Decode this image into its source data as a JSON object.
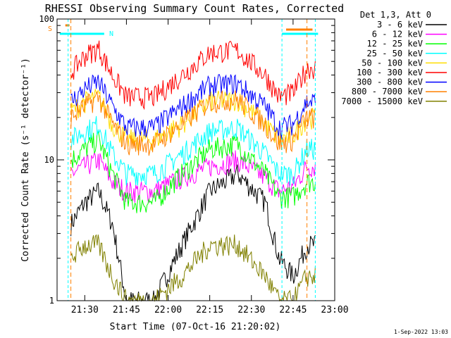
{
  "chart_data": {
    "type": "line",
    "title": "RHESSI Observing Summary Count Rates, Corrected",
    "xlabel": "Start Time (07-Oct-16 21:20:02)",
    "ylabel": "Corrected Count Rate (s⁻¹ detector⁻¹)",
    "yscale": "log",
    "ylim": [
      1,
      100
    ],
    "xlim": [
      "21:20:02",
      "23:00"
    ],
    "x_ticks": [
      "21:30",
      "21:45",
      "22:00",
      "22:15",
      "22:30",
      "22:45",
      "23:00"
    ],
    "y_ticks": [
      "1",
      "10",
      "100"
    ],
    "legend_title": "Det 1,3, Att 0",
    "legend_position": "right",
    "grid": false,
    "flags": [
      {
        "label": "S",
        "color": "#ff8000"
      },
      {
        "label": "N",
        "color": "#00ffff"
      }
    ],
    "series": [
      {
        "name": "3 - 6 keV",
        "color": "#000000",
        "values": [
          3.5,
          5,
          6,
          3.5,
          1,
          1,
          2.5,
          6,
          8,
          5,
          2,
          1.5,
          2.5
        ]
      },
      {
        "name": "6 - 12 keV",
        "color": "#ff00ff",
        "values": [
          8,
          9,
          10,
          7,
          6,
          6,
          7.5,
          9,
          10,
          7.5,
          6,
          6.5,
          9
        ]
      },
      {
        "name": "12 - 25 keV",
        "color": "#00ff00",
        "values": [
          10,
          12,
          14,
          8,
          5,
          5,
          8,
          12,
          13,
          8,
          5.5,
          5.5,
          7
        ]
      },
      {
        "name": "25 - 50 keV",
        "color": "#00ffff",
        "values": [
          14,
          16,
          18,
          11,
          8,
          8,
          11,
          16,
          17,
          11,
          8,
          8,
          12
        ]
      },
      {
        "name": "50 - 100 keV",
        "color": "#ffdd00",
        "values": [
          22,
          26,
          28,
          18,
          14,
          14,
          18,
          26,
          27,
          18,
          14,
          15,
          20
        ]
      },
      {
        "name": "100 - 300 keV",
        "color": "#ff0000",
        "values": [
          42,
          55,
          62,
          40,
          28,
          28,
          40,
          58,
          60,
          40,
          28,
          30,
          45
        ]
      },
      {
        "name": "300 - 800 keV",
        "color": "#0000ff",
        "values": [
          26,
          32,
          36,
          24,
          17,
          17,
          24,
          34,
          35,
          24,
          17,
          18,
          26
        ]
      },
      {
        "name": "800 - 7000 keV",
        "color": "#ff8000",
        "values": [
          20,
          24,
          28,
          18,
          13,
          13,
          18,
          26,
          27,
          18,
          13,
          14,
          20
        ]
      },
      {
        "name": "7000 - 15000 keV",
        "color": "#808000",
        "values": [
          2,
          2.5,
          2.5,
          1.5,
          1,
          1,
          1.5,
          2.5,
          2.5,
          1.5,
          1,
          1,
          1.5
        ]
      }
    ],
    "x": [
      "21:25",
      "21:30",
      "21:35",
      "21:40",
      "21:45",
      "21:55",
      "22:05",
      "22:15",
      "22:25",
      "22:35",
      "22:40",
      "22:45",
      "22:50"
    ]
  },
  "footer": {
    "date_stamp": "1-Sep-2022 13:03"
  }
}
